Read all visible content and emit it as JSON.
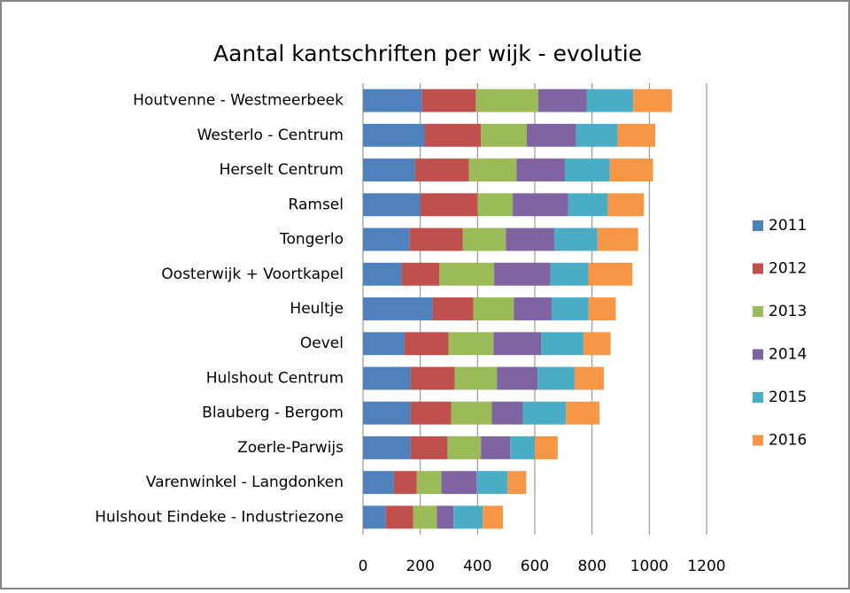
{
  "chart_data": {
    "type": "bar",
    "orientation": "horizontal",
    "stacked": true,
    "title": "Aantal kantschriften per wijk - evolutie",
    "categories": [
      "Houtvenne - Westmeerbeek",
      "Westerlo - Centrum",
      "Herselt Centrum",
      "Ramsel",
      "Tongerlo",
      "Oosterwijk + Voortkapel",
      "Heultje",
      "Oevel",
      "Hulshout Centrum",
      "Blauberg - Bergom",
      "Zoerle-Parwijs",
      "Varenwinkel - Langdonken",
      "Hulshout Eindeke - Industriezone"
    ],
    "series": [
      {
        "name": "2011",
        "color": "#4f81bd",
        "values": [
          206,
          215,
          182,
          200,
          163,
          135,
          243,
          145,
          166,
          166,
          166,
          108,
          80
        ]
      },
      {
        "name": "2012",
        "color": "#c0504d",
        "values": [
          188,
          197,
          188,
          200,
          185,
          132,
          142,
          154,
          154,
          142,
          129,
          80,
          95
        ]
      },
      {
        "name": "2013",
        "color": "#9bbb59",
        "values": [
          218,
          160,
          166,
          123,
          151,
          191,
          142,
          157,
          148,
          142,
          117,
          86,
          83
        ]
      },
      {
        "name": "2014",
        "color": "#8064a2",
        "values": [
          169,
          172,
          169,
          194,
          169,
          197,
          132,
          166,
          142,
          108,
          102,
          123,
          58
        ]
      },
      {
        "name": "2015",
        "color": "#4bacc6",
        "values": [
          163,
          145,
          157,
          138,
          151,
          132,
          129,
          148,
          129,
          151,
          86,
          108,
          102
        ]
      },
      {
        "name": "2016",
        "color": "#f79646",
        "values": [
          135,
          132,
          151,
          126,
          142,
          154,
          95,
          95,
          102,
          117,
          80,
          65,
          71
        ]
      }
    ],
    "xlim": [
      0,
      1200
    ],
    "xticks": [
      0,
      200,
      400,
      600,
      800,
      1000,
      1200
    ],
    "grid": true,
    "legend": "right"
  }
}
